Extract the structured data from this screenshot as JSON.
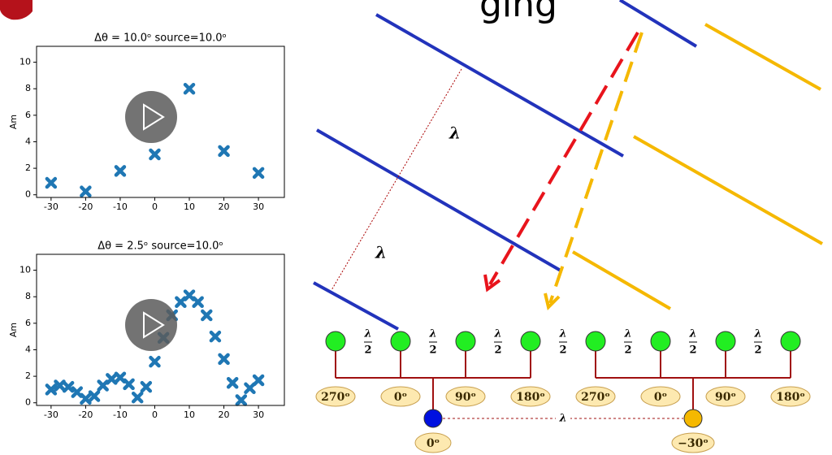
{
  "chart_data": [
    {
      "type": "scatter",
      "title": "Δθ = 10.0ᵒ  source=10.0ᵒ",
      "y_label": "Am",
      "color": "#1f77b4",
      "x": [
        -30,
        -20,
        -10,
        0,
        10,
        20,
        30
      ],
      "values": [
        0.9,
        0.25,
        1.8,
        3.05,
        8.0,
        3.3,
        1.65
      ],
      "xlim": [
        -34.2,
        37.5
      ],
      "ylim": [
        -0.2,
        11.2
      ],
      "xticks": [
        -30,
        -20,
        -10,
        0,
        10,
        20,
        30
      ],
      "yticks": [
        0,
        2,
        4,
        6,
        8,
        10
      ]
    },
    {
      "type": "scatter",
      "title": "Δθ = 2.5ᵒ  source=10.0ᵒ",
      "y_label": "Am",
      "color": "#1f77b4",
      "x": [
        -30,
        -27.5,
        -25,
        -22.5,
        -20,
        -17.5,
        -15,
        -12.5,
        -10,
        -7.5,
        -5,
        -2.5,
        0,
        2.5,
        5,
        7.5,
        10,
        12.5,
        15,
        17.5,
        20,
        22.5,
        25,
        27.5,
        30
      ],
      "values": [
        1.0,
        1.3,
        1.2,
        0.8,
        0.3,
        0.5,
        1.3,
        1.8,
        1.9,
        1.4,
        0.4,
        1.2,
        3.1,
        4.9,
        6.6,
        7.6,
        8.1,
        7.6,
        6.6,
        5.0,
        3.3,
        1.5,
        0.2,
        1.1,
        1.7
      ],
      "xlim": [
        -34.2,
        37.5
      ],
      "ylim": [
        -0.2,
        11.2
      ],
      "xticks": [
        -30,
        -20,
        -10,
        0,
        10,
        20,
        30
      ],
      "yticks": [
        0,
        2,
        4,
        6,
        8,
        10
      ]
    }
  ],
  "slide": {
    "title_fragment": "ging"
  },
  "diagram": {
    "wavelength_labels": [
      "λ",
      "λ"
    ],
    "half_wavelength_labels": [
      {
        "num": "λ",
        "den": "2"
      },
      {
        "num": "λ",
        "den": "2"
      },
      {
        "num": "λ",
        "den": "2"
      },
      {
        "num": "λ",
        "den": "2"
      },
      {
        "num": "λ",
        "den": "2"
      },
      {
        "num": "λ",
        "den": "2"
      },
      {
        "num": "λ",
        "den": "2"
      }
    ],
    "element_phases": [
      "270ᵒ",
      "0ᵒ",
      "90ᵒ",
      "180ᵒ",
      "270ᵒ",
      "0ᵒ",
      "90ᵒ",
      "180ᵒ"
    ],
    "subarray_phases": [
      "0ᵒ",
      "−30ᵒ"
    ],
    "subarray_spacing": "λ"
  }
}
